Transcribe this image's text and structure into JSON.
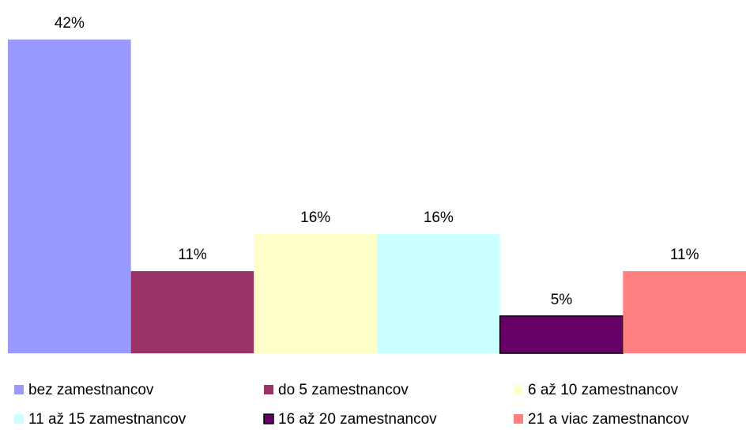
{
  "chart_data": {
    "type": "bar",
    "series": [
      {
        "name": "bez zamestnancov",
        "color": "#9999ff",
        "values": [
          42
        ],
        "value_labels": [
          "42%"
        ]
      },
      {
        "name": "do 5 zamestnancov",
        "color": "#993366",
        "values": [
          11
        ],
        "value_labels": [
          "11%"
        ]
      },
      {
        "name": "6 až 10 zamestnancov",
        "color": "#ffffcc",
        "values": [
          16
        ],
        "value_labels": [
          "16%"
        ]
      },
      {
        "name": "11 až 15 zamestnancov",
        "color": "#ccffff",
        "values": [
          16
        ],
        "value_labels": [
          "16%"
        ]
      },
      {
        "name": "16 až 20 zamestnancov",
        "color": "#660066",
        "values": [
          5
        ],
        "value_labels": [
          "5%"
        ]
      },
      {
        "name": "21 a viac zamestnancov",
        "color": "#ff8080",
        "values": [
          11
        ],
        "value_labels": [
          "11%"
        ]
      }
    ],
    "legend": "bottom"
  }
}
